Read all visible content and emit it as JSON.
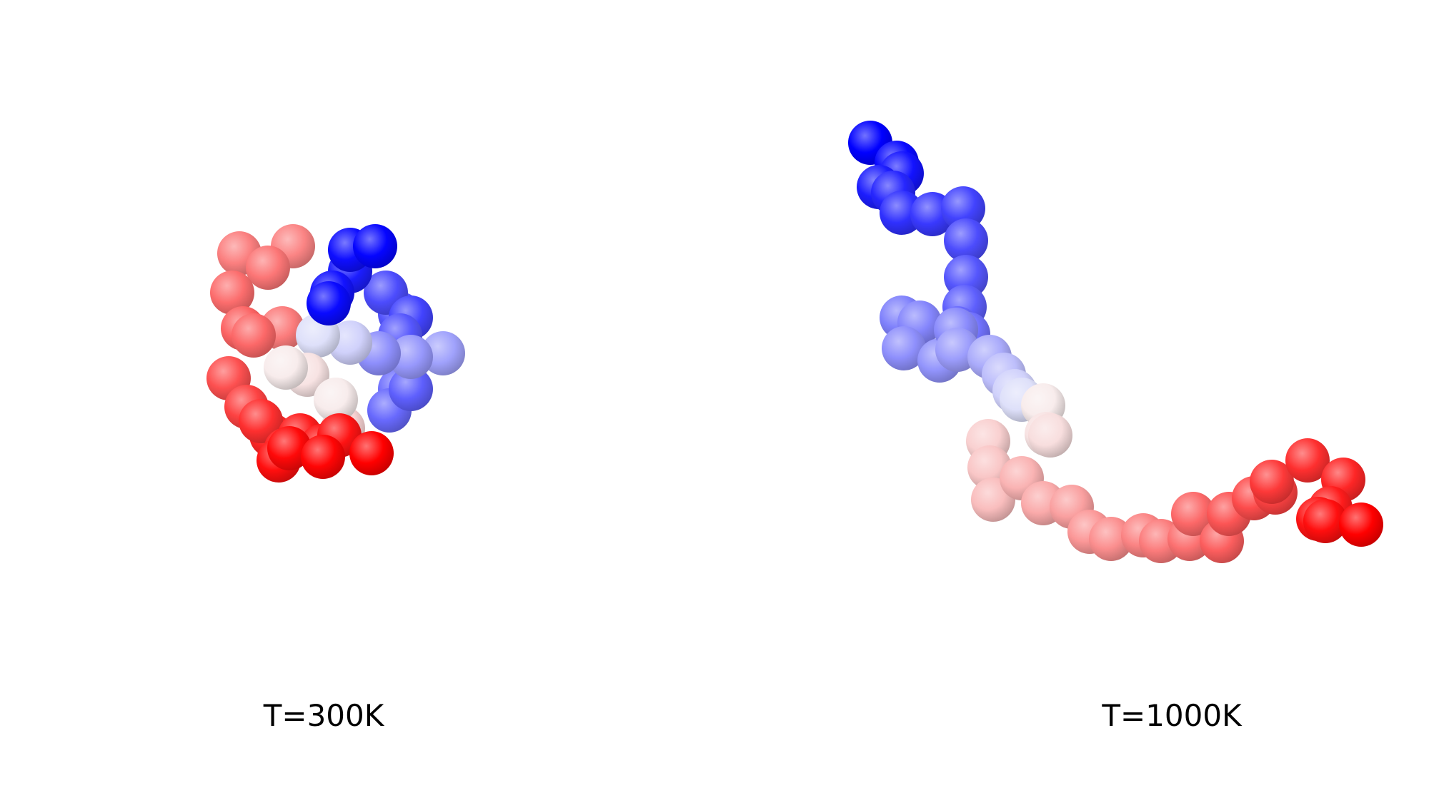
{
  "panels": [
    {
      "id": "compact",
      "label": "T=300K"
    },
    {
      "id": "extended",
      "label": "T=1000K"
    }
  ],
  "colors": {
    "start": "#0000ff",
    "middle": "#ffffff",
    "end": "#ff0000"
  }
}
